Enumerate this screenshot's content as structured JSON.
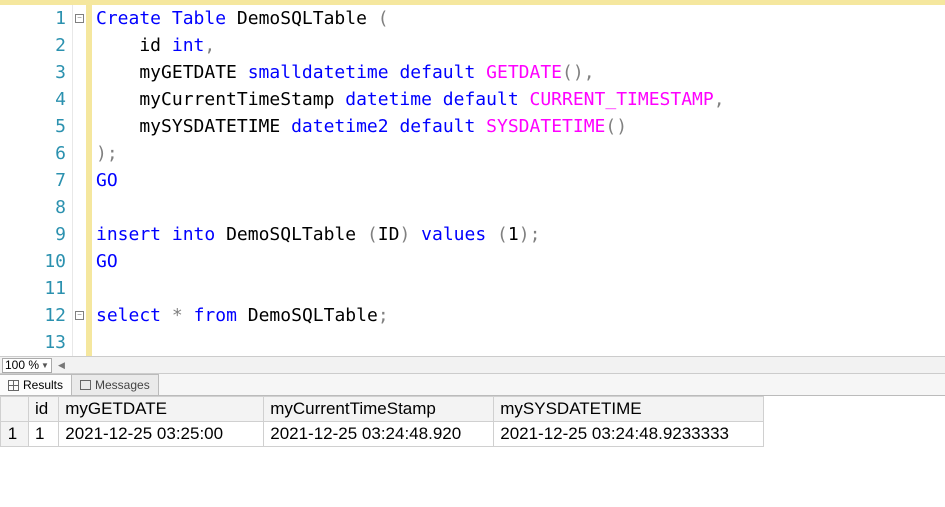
{
  "editor": {
    "line_count": 13,
    "fold_markers": {
      "1": "-",
      "12": "-"
    },
    "lines": [
      [
        {
          "t": "Create",
          "c": "kw"
        },
        {
          "t": " ",
          "c": "txt"
        },
        {
          "t": "Table",
          "c": "kw"
        },
        {
          "t": " DemoSQLTable ",
          "c": "txt"
        },
        {
          "t": "(",
          "c": "paren"
        }
      ],
      [
        {
          "t": "    id ",
          "c": "txt"
        },
        {
          "t": "int",
          "c": "kw"
        },
        {
          "t": ",",
          "c": "paren"
        }
      ],
      [
        {
          "t": "    myGETDATE ",
          "c": "txt"
        },
        {
          "t": "smalldatetime",
          "c": "kw"
        },
        {
          "t": " ",
          "c": "txt"
        },
        {
          "t": "default",
          "c": "kw"
        },
        {
          "t": " ",
          "c": "txt"
        },
        {
          "t": "GETDATE",
          "c": "fn"
        },
        {
          "t": "(),",
          "c": "paren"
        }
      ],
      [
        {
          "t": "    myCurrentTimeStamp ",
          "c": "txt"
        },
        {
          "t": "datetime",
          "c": "kw"
        },
        {
          "t": " ",
          "c": "txt"
        },
        {
          "t": "default",
          "c": "kw"
        },
        {
          "t": " ",
          "c": "txt"
        },
        {
          "t": "CURRENT_TIMESTAMP",
          "c": "fn"
        },
        {
          "t": ",",
          "c": "paren"
        }
      ],
      [
        {
          "t": "    mySYSDATETIME ",
          "c": "txt"
        },
        {
          "t": "datetime2",
          "c": "kw"
        },
        {
          "t": " ",
          "c": "txt"
        },
        {
          "t": "default",
          "c": "kw"
        },
        {
          "t": " ",
          "c": "txt"
        },
        {
          "t": "SYSDATETIME",
          "c": "fn"
        },
        {
          "t": "()",
          "c": "paren"
        }
      ],
      [
        {
          "t": ");",
          "c": "paren"
        }
      ],
      [
        {
          "t": "GO",
          "c": "kw"
        }
      ],
      [
        {
          "t": "",
          "c": "txt"
        }
      ],
      [
        {
          "t": "insert",
          "c": "kw"
        },
        {
          "t": " ",
          "c": "txt"
        },
        {
          "t": "into",
          "c": "kw"
        },
        {
          "t": " DemoSQLTable ",
          "c": "txt"
        },
        {
          "t": "(",
          "c": "paren"
        },
        {
          "t": "ID",
          "c": "txt"
        },
        {
          "t": ")",
          "c": "paren"
        },
        {
          "t": " ",
          "c": "txt"
        },
        {
          "t": "values",
          "c": "kw"
        },
        {
          "t": " ",
          "c": "txt"
        },
        {
          "t": "(",
          "c": "paren"
        },
        {
          "t": "1",
          "c": "txt"
        },
        {
          "t": ");",
          "c": "paren"
        }
      ],
      [
        {
          "t": "GO",
          "c": "kw"
        }
      ],
      [
        {
          "t": "",
          "c": "txt"
        }
      ],
      [
        {
          "t": "select",
          "c": "kw"
        },
        {
          "t": " ",
          "c": "txt"
        },
        {
          "t": "*",
          "c": "paren"
        },
        {
          "t": " ",
          "c": "txt"
        },
        {
          "t": "from",
          "c": "kw"
        },
        {
          "t": " DemoSQLTable",
          "c": "txt"
        },
        {
          "t": ";",
          "c": "paren"
        }
      ],
      [
        {
          "t": "",
          "c": "txt"
        }
      ]
    ]
  },
  "zoom": {
    "value": "100 %"
  },
  "tabs": {
    "results": "Results",
    "messages": "Messages"
  },
  "results": {
    "columns": [
      "id",
      "myGETDATE",
      "myCurrentTimeStamp",
      "mySYSDATETIME"
    ],
    "rows": [
      {
        "n": "1",
        "cells": [
          "1",
          "2021-12-25 03:25:00",
          "2021-12-25 03:24:48.920",
          "2021-12-25 03:24:48.9233333"
        ]
      }
    ]
  },
  "colors": {
    "keyword": "#0000ff",
    "function": "#ff00ff",
    "system": "#008080",
    "punctuation": "#808080",
    "text": "#000000",
    "gutter_number": "#2b91af",
    "change_strip": "#f5e79e",
    "grid_border": "#d0d0d0",
    "header_bg": "#f3f3f3"
  }
}
